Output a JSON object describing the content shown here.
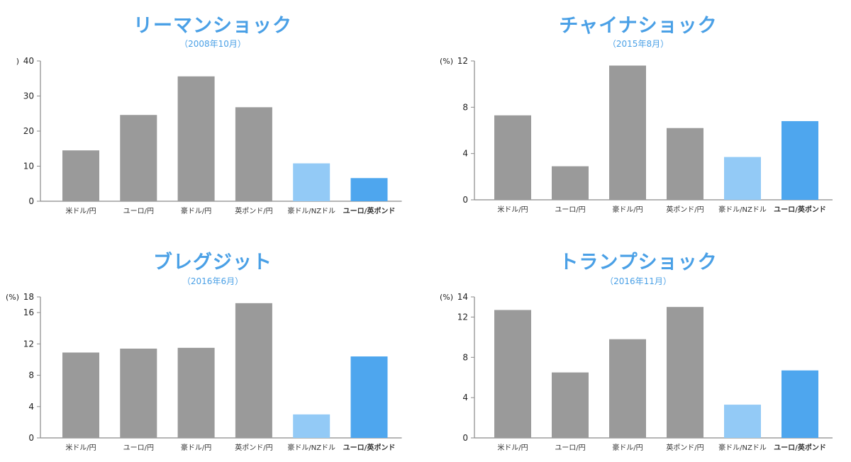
{
  "colors": {
    "title": "#4aa0e6",
    "bar_default": "#9a9a9a",
    "bar_nzd": "#93caf6",
    "bar_eurgbp": "#4ea6ee",
    "axis": "#8a8a8a",
    "highlight_label": "#3b93e4"
  },
  "chart_data": [
    {
      "type": "bar",
      "title": "リーマンショック",
      "subtitle": "（2008年10月）",
      "ylabel": ")",
      "categories": [
        "米ドル/円",
        "ユーロ/円",
        "豪ドル/円",
        "英ポンド/円",
        "豪ドル/NZドル",
        "ユーロ/英ポンド"
      ],
      "values": [
        14.5,
        24.6,
        35.6,
        26.8,
        10.8,
        6.6
      ],
      "ylim": [
        0,
        40
      ],
      "yticks": [
        0,
        10,
        20,
        30,
        40
      ],
      "grid": false,
      "legend": "none"
    },
    {
      "type": "bar",
      "title": "チャイナショック",
      "subtitle": "（2015年8月）",
      "ylabel": "(%)",
      "categories": [
        "米ドル/円",
        "ユーロ/円",
        "豪ドル/円",
        "英ポンド/円",
        "豪ドル/NZドル",
        "ユーロ/英ポンド"
      ],
      "values": [
        7.3,
        2.9,
        11.6,
        6.2,
        3.7,
        6.8
      ],
      "ylim": [
        0,
        12
      ],
      "yticks": [
        0,
        4,
        8,
        12
      ],
      "grid": false,
      "legend": "none"
    },
    {
      "type": "bar",
      "title": "ブレグジット",
      "subtitle": "（2016年6月）",
      "ylabel": "(%)",
      "categories": [
        "米ドル/円",
        "ユーロ/円",
        "豪ドル/円",
        "英ポンド/円",
        "豪ドル/NZドル",
        "ユーロ/英ポンド"
      ],
      "values": [
        10.9,
        11.4,
        11.5,
        17.2,
        3.0,
        10.4
      ],
      "ylim": [
        0,
        18
      ],
      "yticks": [
        0,
        4,
        8,
        12,
        16,
        18
      ],
      "grid": false,
      "legend": "none"
    },
    {
      "type": "bar",
      "title": "トランプショック",
      "subtitle": "（2016年11月）",
      "ylabel": "(%)",
      "categories": [
        "米ドル/円",
        "ユーロ/円",
        "豪ドル/円",
        "英ポンド/円",
        "豪ドル/NZドル",
        "ユーロ/英ポンド"
      ],
      "values": [
        12.7,
        6.5,
        9.8,
        13.0,
        3.3,
        6.7
      ],
      "ylim": [
        0,
        14
      ],
      "yticks": [
        0,
        4,
        8,
        12,
        14
      ],
      "grid": false,
      "legend": "none"
    }
  ]
}
